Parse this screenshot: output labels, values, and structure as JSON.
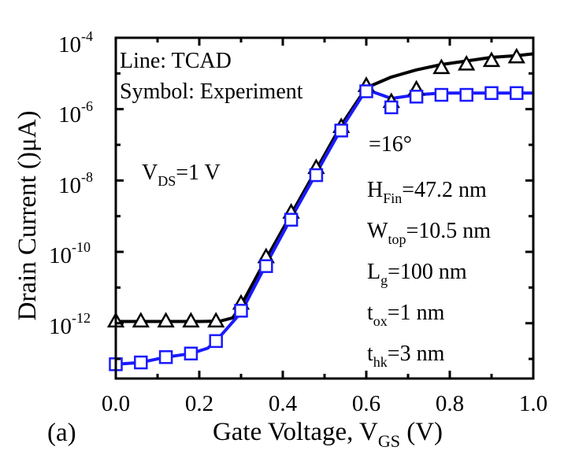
{
  "chart_data": {
    "type": "line",
    "panel_label": "(a)",
    "xlabel": {
      "main": "Gate Voltage, V",
      "sub": "GS",
      "unit": " (V)"
    },
    "ylabel": "Drain Current ()μA)",
    "xlim": [
      0.0,
      1.0
    ],
    "ylim_log10": [
      -13.55,
      -4
    ],
    "yscale": "log",
    "x_ticks": [
      "0.0",
      "0.2",
      "0.4",
      "0.6",
      "0.8",
      "1.0"
    ],
    "x_tick_values": [
      0.0,
      0.2,
      0.4,
      0.6,
      0.8,
      1.0
    ],
    "y_ticks": [
      {
        "base": "10",
        "exp": "-4",
        "value": -4
      },
      {
        "base": "10",
        "exp": "-6",
        "value": -6
      },
      {
        "base": "10",
        "exp": "-8",
        "value": -8
      },
      {
        "base": "10",
        "exp": "-10",
        "value": -10
      },
      {
        "base": "10",
        "exp": "-12",
        "value": -12
      }
    ],
    "legend_text": [
      "Line: TCAD",
      "Symbol: Experiment"
    ],
    "annotation_vds": {
      "main": "V",
      "sub": "DS",
      "rest": "=1 V"
    },
    "params": [
      {
        "main": "",
        "sub": "",
        "rest": "=16°"
      },
      {
        "main": "H",
        "sub": "Fin",
        "rest": "=47.2 nm"
      },
      {
        "main": "W",
        "sub": "top",
        "rest": "=10.5 nm"
      },
      {
        "main": "L",
        "sub": "g",
        "rest": "=100 nm"
      },
      {
        "main": "t",
        "sub": "ox",
        "rest": "=1 nm"
      },
      {
        "main": "t",
        "sub": "hk",
        "rest": "=3 nm"
      }
    ],
    "series": [
      {
        "color": "#000000",
        "marker": "triangle",
        "line_x": [
          0.0,
          0.1,
          0.2,
          0.25,
          0.28,
          0.3,
          0.36,
          0.42,
          0.48,
          0.54,
          0.6,
          0.66,
          0.72,
          0.78,
          0.84,
          0.9,
          0.96,
          1.0
        ],
        "line_log_y": [
          -11.95,
          -11.95,
          -11.95,
          -11.94,
          -11.85,
          -11.5,
          -10.2,
          -8.95,
          -7.7,
          -6.45,
          -5.4,
          -5.1,
          -4.9,
          -4.75,
          -4.65,
          -4.55,
          -4.5,
          -4.45
        ],
        "marker_x": [
          0.0,
          0.06,
          0.12,
          0.18,
          0.24,
          0.3,
          0.36,
          0.42,
          0.48,
          0.54,
          0.6,
          0.66,
          0.72,
          0.78,
          0.84,
          0.9,
          0.96
        ],
        "marker_log_y": [
          -11.95,
          -11.95,
          -11.95,
          -11.95,
          -11.95,
          -11.45,
          -10.15,
          -8.9,
          -7.65,
          -6.5,
          -5.35,
          -5.8,
          -5.45,
          -4.85,
          -4.75,
          -4.65,
          -4.55
        ]
      },
      {
        "color": "#1a1aff",
        "marker": "square",
        "line_x": [
          0.0,
          0.06,
          0.12,
          0.18,
          0.22,
          0.24,
          0.27,
          0.3,
          0.36,
          0.42,
          0.48,
          0.54,
          0.6,
          0.66,
          0.72,
          0.78,
          0.84,
          0.9,
          0.96,
          1.0
        ],
        "line_log_y": [
          -13.15,
          -13.1,
          -12.95,
          -12.85,
          -12.7,
          -12.5,
          -12.1,
          -11.7,
          -10.35,
          -9.05,
          -7.8,
          -6.55,
          -5.45,
          -5.7,
          -5.6,
          -5.55,
          -5.55,
          -5.55,
          -5.55,
          -5.55
        ],
        "marker_x": [
          0.0,
          0.06,
          0.12,
          0.18,
          0.24,
          0.3,
          0.36,
          0.42,
          0.48,
          0.54,
          0.6,
          0.66,
          0.72,
          0.78,
          0.84,
          0.9,
          0.96
        ],
        "marker_log_y": [
          -13.15,
          -13.1,
          -12.95,
          -12.85,
          -12.5,
          -11.65,
          -10.4,
          -9.1,
          -7.85,
          -6.6,
          -5.5,
          -5.95,
          -5.65,
          -5.6,
          -5.6,
          -5.55,
          -5.55
        ]
      }
    ]
  }
}
